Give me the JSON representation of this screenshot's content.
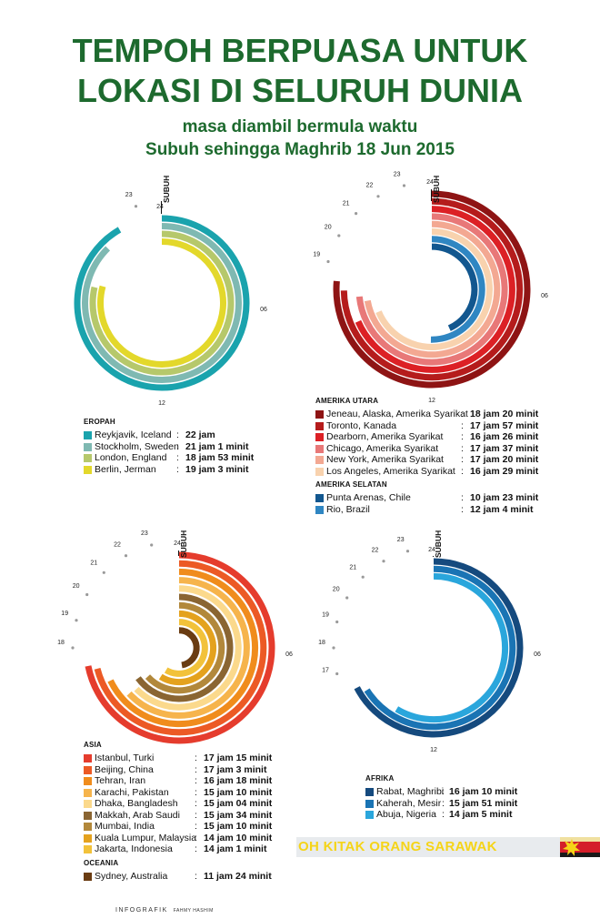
{
  "title_lines": [
    "TEMPOH BERPUASA UNTUK",
    "LOKASI DI SELURUH DUNIA"
  ],
  "subtitle_lines": [
    "masa diambil bermula waktu",
    "Subuh sehingga Maghrib 18 Jun 2015"
  ],
  "credit": "INFOGRAFIK",
  "credit_name": "FAHMY HASHIM",
  "banner_text": "OH KITAK ORANG SARAWAK",
  "colors": {
    "title_green": "#1d6a2e",
    "banner_red": "#d41e2a",
    "banner_yellow": "#f5d418"
  },
  "chart_data": [
    {
      "type": "radial-bar",
      "panel": "eropah",
      "subuh_label": "SUBUH",
      "clock_labels": [
        {
          "hour": "24"
        },
        {
          "hour": "06"
        },
        {
          "hour": "12"
        },
        {
          "hour": "23"
        }
      ],
      "groups": [
        {
          "title": "EROPAH",
          "series": [
            {
              "name": "Reykjavik, Iceland",
              "value_text": "22 jam",
              "hours": 22.0,
              "color": "#1aa3ad"
            },
            {
              "name": "Stockholm, Sweden",
              "value_text": "21 jam 1 minit",
              "hours": 21.02,
              "color": "#7fb9b2"
            },
            {
              "name": "London, England",
              "value_text": "18 jam 53 minit",
              "hours": 18.88,
              "color": "#b6c86b"
            },
            {
              "name": "Berlin, Jerman",
              "value_text": "19 jam 3 minit",
              "hours": 19.05,
              "color": "#e3d82b"
            }
          ]
        }
      ]
    },
    {
      "type": "radial-bar",
      "panel": "amerika",
      "subuh_label": "SUBUH",
      "clock_labels": [
        {
          "hour": "24"
        },
        {
          "hour": "06"
        },
        {
          "hour": "12"
        },
        {
          "hour": "23"
        },
        {
          "hour": "22"
        },
        {
          "hour": "21"
        },
        {
          "hour": "20"
        },
        {
          "hour": "19"
        }
      ],
      "groups": [
        {
          "title": "AMERIKA UTARA",
          "series": [
            {
              "name": "Jeneau, Alaska, Amerika Syarikat",
              "value_text": "18 jam 20 minit",
              "hours": 18.33,
              "color": "#8e1414"
            },
            {
              "name": "Toronto, Kanada",
              "value_text": "17 jam 57 minit",
              "hours": 17.95,
              "color": "#b51c1c"
            },
            {
              "name": "Dearborn, Amerika Syarikat",
              "value_text": "16 jam 26 minit",
              "hours": 16.43,
              "color": "#dc2025"
            },
            {
              "name": "Chicago, Amerika Syarikat",
              "value_text": "17 jam 37 minit",
              "hours": 17.62,
              "color": "#e87878"
            },
            {
              "name": "New York, Amerika Syarikat",
              "value_text": "17 jam 20 minit",
              "hours": 17.33,
              "color": "#f3a892"
            },
            {
              "name": "Los Angeles, Amerika Syarikat",
              "value_text": "16 jam 29 minit",
              "hours": 16.48,
              "color": "#f8d2ae"
            }
          ]
        },
        {
          "title": "AMERIKA SELATAN",
          "series": [
            {
              "name": "Punta Arenas, Chile",
              "value_text": "10 jam 23 minit",
              "hours": 10.38,
              "color": "#12578f"
            },
            {
              "name": "Rio, Brazil",
              "value_text": "12 jam 4 minit",
              "hours": 12.07,
              "color": "#2f86c2"
            }
          ]
        }
      ]
    },
    {
      "type": "radial-bar",
      "panel": "asia",
      "subuh_label": "SUBUH",
      "clock_labels": [
        {
          "hour": "24"
        },
        {
          "hour": "06"
        },
        {
          "hour": "23"
        },
        {
          "hour": "22"
        },
        {
          "hour": "21"
        },
        {
          "hour": "20"
        },
        {
          "hour": "19"
        },
        {
          "hour": "18"
        }
      ],
      "groups": [
        {
          "title": "ASIA",
          "series": [
            {
              "name": "Istanbul, Turki",
              "value_text": "17 jam 15 minit",
              "hours": 17.25,
              "color": "#e53c2d"
            },
            {
              "name": "Beijing, China",
              "value_text": "17 jam 3 minit",
              "hours": 17.05,
              "color": "#ec5a25"
            },
            {
              "name": "Tehran, Iran",
              "value_text": "16 jam 18 minit",
              "hours": 16.3,
              "color": "#f08c1c"
            },
            {
              "name": "Karachi, Pakistan",
              "value_text": "15 jam 10 minit",
              "hours": 15.17,
              "color": "#f6b44c"
            },
            {
              "name": "Dhaka, Bangladesh",
              "value_text": "15 jam 04 minit",
              "hours": 15.07,
              "color": "#fbd98c"
            },
            {
              "name": "Makkah, Arab Saudi",
              "value_text": "15 jam 34 minit",
              "hours": 15.57,
              "color": "#8a6532"
            },
            {
              "name": "Mumbai, India",
              "value_text": "15 jam 10 minit",
              "hours": 15.17,
              "color": "#b2883b"
            },
            {
              "name": "Kuala Lumpur, Malaysia",
              "value_text": "14 jam 10 minit",
              "hours": 14.17,
              "color": "#e4a21e"
            },
            {
              "name": "Jakarta, Indonesia",
              "value_text": "14 jam 1 minit",
              "hours": 14.02,
              "color": "#f2c23a"
            }
          ]
        },
        {
          "title": "OCEANIA",
          "series": [
            {
              "name": "Sydney, Australia",
              "value_text": "11 jam 24 minit",
              "hours": 11.4,
              "color": "#6a3c12"
            }
          ]
        }
      ]
    },
    {
      "type": "radial-bar",
      "panel": "afrika",
      "subuh_label": "SUBUH",
      "clock_labels": [
        {
          "hour": "24"
        },
        {
          "hour": "06"
        },
        {
          "hour": "12"
        },
        {
          "hour": "23"
        },
        {
          "hour": "22"
        },
        {
          "hour": "21"
        },
        {
          "hour": "20"
        },
        {
          "hour": "19"
        },
        {
          "hour": "18"
        },
        {
          "hour": "17"
        }
      ],
      "groups": [
        {
          "title": "AFRIKA",
          "series": [
            {
              "name": "Rabat, Maghribi",
              "value_text": "16 jam 10 minit",
              "hours": 16.17,
              "color": "#154a7e"
            },
            {
              "name": "Kaherah, Mesir",
              "value_text": "15 jam 51 minit",
              "hours": 15.85,
              "color": "#1a74b4"
            },
            {
              "name": "Abuja, Nigeria",
              "value_text": "14 jam 5 minit",
              "hours": 14.08,
              "color": "#2aa6dc"
            }
          ]
        }
      ]
    }
  ]
}
